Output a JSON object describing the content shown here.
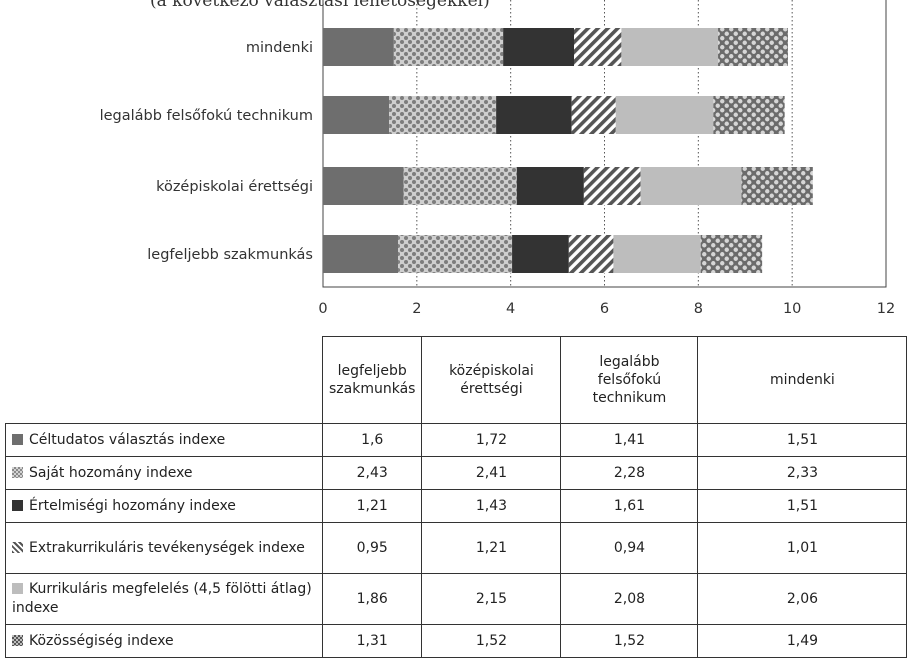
{
  "top_text": "(a következő választási lehetőségekkel)",
  "chart_data": {
    "type": "bar",
    "orientation": "horizontal",
    "stacked": true,
    "categories": [
      "mindenki",
      "legalább felsőfokú technikum",
      "középiskolai érettségi",
      "legfeljebb szakmunkás"
    ],
    "xlim": [
      0,
      12
    ],
    "xticks": [
      0,
      2,
      4,
      6,
      8,
      10,
      12
    ],
    "grid": "vertical dotted",
    "series": [
      {
        "name": "Céltudatos választás indexe",
        "color": "#6e6e6e",
        "pattern": "solid",
        "values": [
          1.51,
          1.41,
          1.72,
          1.6
        ]
      },
      {
        "name": "Saját hozomány indexe",
        "color": "#8c8c8c",
        "pattern": "light-dots",
        "values": [
          2.33,
          2.28,
          2.41,
          2.43
        ]
      },
      {
        "name": "Értelmiségi hozomány indexe",
        "color": "#333333",
        "pattern": "solid",
        "values": [
          1.51,
          1.61,
          1.43,
          1.21
        ]
      },
      {
        "name": "Extrakurrikuláris tevékenységek indexe",
        "color": "#555555",
        "pattern": "diagonal",
        "values": [
          1.01,
          0.94,
          1.21,
          0.95
        ]
      },
      {
        "name": "Kurrikuláris megfelelés (4,5 fölötti átlag) indexe",
        "color": "#bdbdbd",
        "pattern": "solid",
        "values": [
          2.06,
          2.08,
          2.15,
          1.86
        ]
      },
      {
        "name": "Közösségiség indexe",
        "color": "#7a7a7a",
        "pattern": "dark-dots",
        "values": [
          1.49,
          1.52,
          1.52,
          1.31
        ]
      }
    ]
  },
  "table": {
    "columns": [
      "legfeljebb szakmunkás",
      "középiskolai érettségi",
      "legalább felsőfokú technikum",
      "mindenki"
    ],
    "rows": [
      {
        "label": "Céltudatos választás indexe",
        "values": [
          "1,6",
          "1,72",
          "1,41",
          "1,51"
        ]
      },
      {
        "label": "Saját hozomány indexe",
        "values": [
          "2,43",
          "2,41",
          "2,28",
          "2,33"
        ]
      },
      {
        "label": "Értelmiségi hozomány indexe",
        "values": [
          "1,21",
          "1,43",
          "1,61",
          "1,51"
        ]
      },
      {
        "label": "Extrakurrikuláris tevékenységek indexe",
        "values": [
          "0,95",
          "1,21",
          "0,94",
          "1,01"
        ]
      },
      {
        "label": "Kurrikuláris megfelelés (4,5 fölötti átlag) indexe",
        "values": [
          "1,86",
          "2,15",
          "2,08",
          "2,06"
        ]
      },
      {
        "label": "Közösségiség indexe",
        "values": [
          "1,31",
          "1,52",
          "1,52",
          "1,49"
        ]
      }
    ]
  }
}
